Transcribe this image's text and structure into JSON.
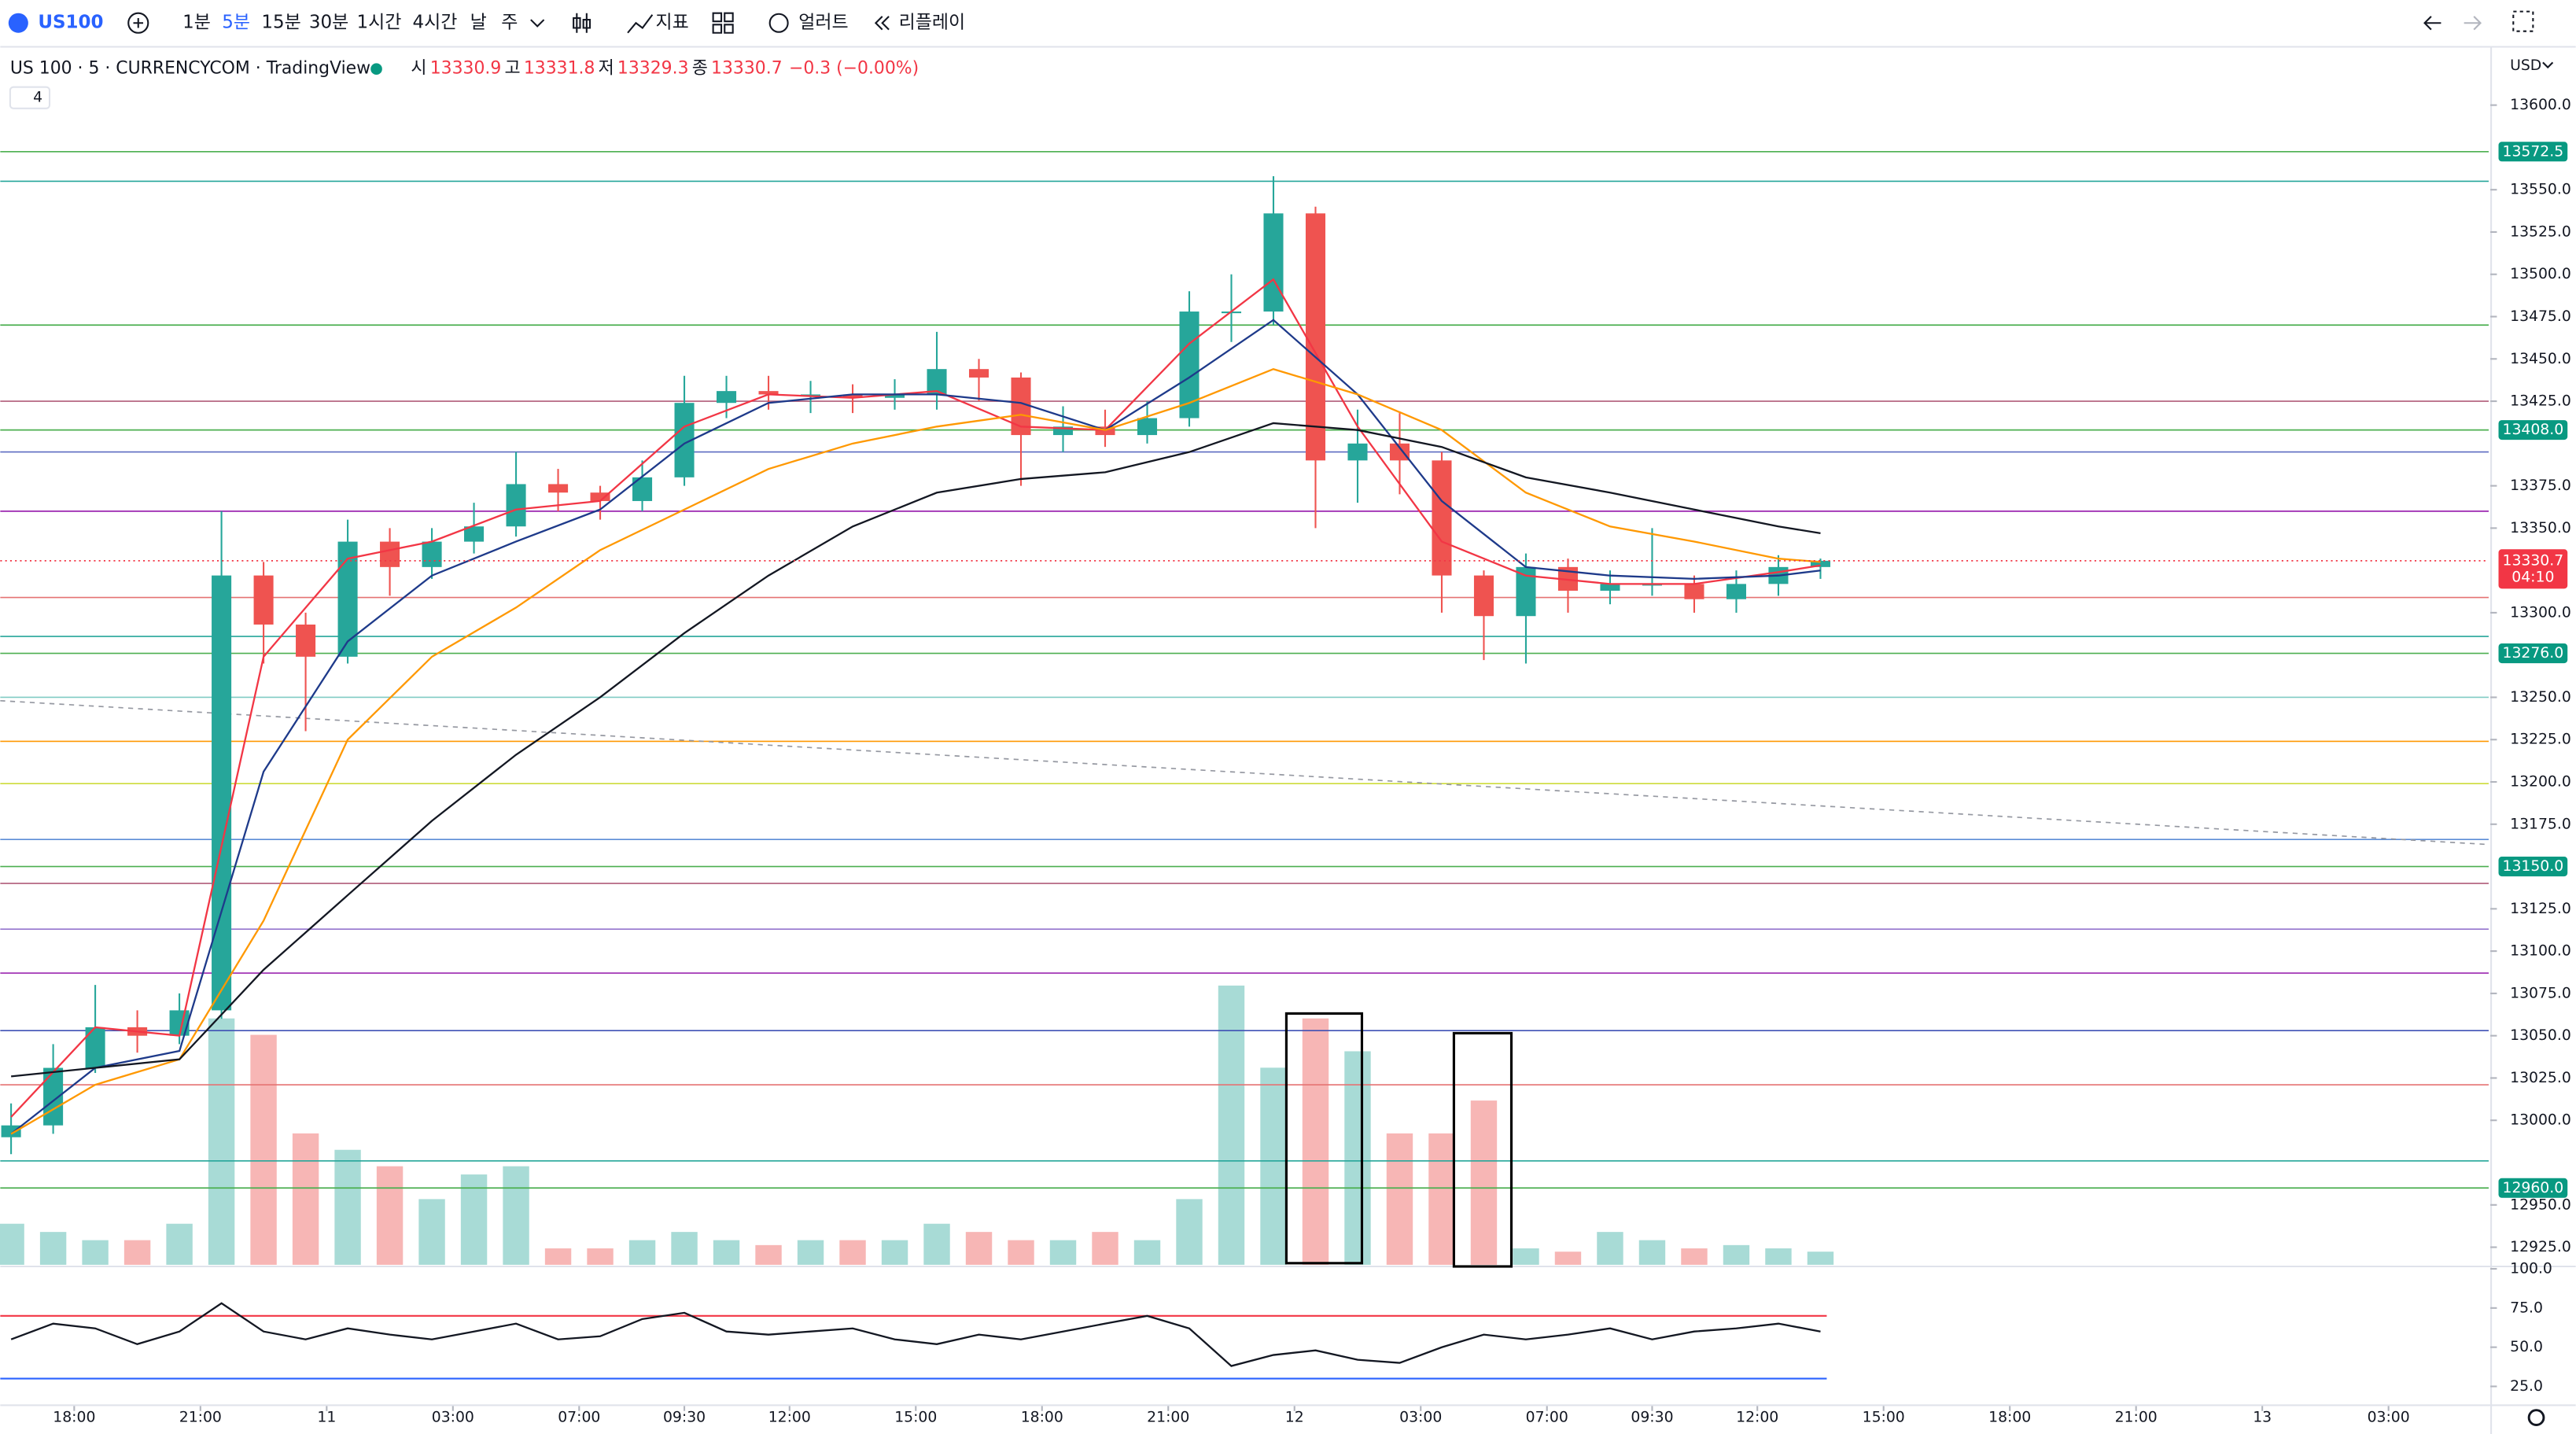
{
  "toolbar": {
    "symbol": "US100",
    "intervals": [
      "1분",
      "5분",
      "15분",
      "30분",
      "1시간",
      "4시간",
      "날",
      "주"
    ],
    "indicators": "지표",
    "alerts": "얼러트",
    "replay": "리플레이"
  },
  "legend": {
    "title": "US 100 · 5 · CURRENCYCOM · TradingView",
    "open_label": "시",
    "open": "13330.9",
    "high_label": "고",
    "high": "13331.8",
    "low_label": "저",
    "low": "13329.3",
    "close_label": "종",
    "close": "13330.7",
    "change": "−0.3 (−0.00%)",
    "indicator_count": "4"
  },
  "chart_data": [
    {
      "type": "candlestick",
      "currency": "USD",
      "x": [
        -1.5,
        -0.5,
        0.5,
        1.5,
        2.5,
        3.5,
        4.5,
        5.5,
        6.5,
        7.5,
        8.5,
        9.5,
        10.5,
        11.5,
        12.5,
        13.5,
        14.5,
        15.5,
        16.5,
        17.5,
        18.5,
        19.5,
        20.5,
        21.5,
        22.5,
        23.5,
        24.5,
        25.5,
        26.5,
        27.5,
        28.5,
        29.5,
        30.5,
        31.5,
        32.5,
        33.5,
        34.5,
        35.5,
        36.5,
        37.5,
        38.5,
        39.5,
        40.5,
        41.5
      ],
      "open": [
        12990,
        12997,
        13031,
        13055,
        13050,
        13065,
        13322,
        13293,
        13274,
        13342,
        13327,
        13342,
        13351,
        13376,
        13371,
        13366,
        13380,
        13424,
        13431,
        13429,
        13429,
        13427,
        13429,
        13444,
        13439,
        13405,
        13410,
        13405,
        13415,
        13478,
        13478,
        13536,
        13390,
        13400,
        13390,
        13322,
        13298,
        13327,
        13313,
        13317,
        13317,
        13308,
        13317,
        13327
      ],
      "high": [
        13010,
        13045,
        13080,
        13065,
        13075,
        13360,
        13330,
        13300,
        13355,
        13350,
        13350,
        13365,
        13395,
        13385,
        13375,
        13390,
        13440,
        13440,
        13440,
        13437,
        13435,
        13438,
        13466,
        13450,
        13442,
        13422,
        13420,
        13425,
        13490,
        13500,
        13558,
        13540,
        13420,
        13418,
        13395,
        13325,
        13335,
        13332,
        13325,
        13350,
        13322,
        13325,
        13334,
        13332
      ],
      "low": [
        12980,
        12992,
        13028,
        13040,
        13045,
        13060,
        13270,
        13230,
        13270,
        13310,
        13320,
        13335,
        13345,
        13360,
        13355,
        13360,
        13375,
        13415,
        13420,
        13418,
        13418,
        13420,
        13420,
        13425,
        13375,
        13395,
        13398,
        13400,
        13410,
        13460,
        13470,
        13350,
        13365,
        13370,
        13300,
        13272,
        13270,
        13300,
        13305,
        13310,
        13300,
        13300,
        13310,
        13320
      ],
      "close": [
        12997,
        13031,
        13055,
        13050,
        13065,
        13322,
        13293,
        13274,
        13342,
        13327,
        13342,
        13351,
        13376,
        13371,
        13366,
        13380,
        13424,
        13431,
        13429,
        13429,
        13427,
        13429,
        13444,
        13439,
        13405,
        13410,
        13405,
        13415,
        13478,
        13478,
        13536,
        13390,
        13400,
        13390,
        13322,
        13298,
        13327,
        13313,
        13317,
        13317,
        13308,
        13317,
        13327,
        13330.7
      ],
      "up_color": "#26a69a",
      "down_color": "#ef5350",
      "volume": {
        "values": [
          25,
          20,
          15,
          15,
          25,
          150,
          140,
          80,
          70,
          60,
          40,
          55,
          60,
          10,
          10,
          15,
          20,
          15,
          12,
          15,
          15,
          15,
          25,
          20,
          15,
          15,
          20,
          15,
          40,
          170,
          120,
          150,
          130,
          80,
          80,
          100,
          10,
          8,
          20,
          15,
          10,
          12,
          10,
          8
        ],
        "ylim": [
          0,
          740
        ],
        "up_color": "#a8dbd6",
        "down_color": "#f7b6b5"
      },
      "ma_x": [
        -1.5,
        0.5,
        2.5,
        4.5,
        6.5,
        8.5,
        10.5,
        12.5,
        14.5,
        16.5,
        18.5,
        20.5,
        22.5,
        24.5,
        26.5,
        28.5,
        30.5,
        32.5,
        34.5,
        36.5,
        38.5,
        40.5,
        41.5
      ],
      "lines": [
        {
          "color": "#f23645",
          "values": [
            13002,
            13055,
            13050,
            13274,
            13332,
            13342,
            13361,
            13366,
            13410,
            13429,
            13427,
            13431,
            13410,
            13408,
            13459,
            13497,
            13410,
            13342,
            13322,
            13317,
            13317,
            13324,
            13328
          ]
        },
        {
          "color": "#1e3a8a",
          "values": [
            12992,
            13031,
            13041,
            13206,
            13283,
            13322,
            13342,
            13361,
            13400,
            13424,
            13429,
            13429,
            13424,
            13408,
            13439,
            13473,
            13429,
            13366,
            13327,
            13322,
            13320,
            13322,
            13325
          ]
        },
        {
          "color": "#ff9800",
          "values": [
            12992,
            13021,
            13036,
            13118,
            13225,
            13274,
            13303,
            13337,
            13361,
            13385,
            13400,
            13410,
            13417,
            13408,
            13424,
            13444,
            13429,
            13408,
            13371,
            13351,
            13342,
            13332,
            13330
          ]
        },
        {
          "color": "#131722",
          "values": [
            13026,
            13031,
            13036,
            13089,
            13133,
            13177,
            13216,
            13250,
            13288,
            13322,
            13351,
            13371,
            13379,
            13383,
            13395,
            13412,
            13408,
            13398,
            13380,
            13371,
            13361,
            13351,
            13347
          ]
        }
      ],
      "levels": [
        {
          "value": 13572.5,
          "color": "#4caf50"
        },
        {
          "value": 13555,
          "color": "#26a69a"
        },
        {
          "value": 13470,
          "color": "#4caf50"
        },
        {
          "value": 13425,
          "color": "#b05d7a"
        },
        {
          "value": 13408,
          "color": "#4caf50"
        },
        {
          "value": 13395,
          "color": "#5c6bc0"
        },
        {
          "value": 13360,
          "color": "#9c27b0"
        },
        {
          "value": 13309,
          "color": "#e57373"
        },
        {
          "value": 13286,
          "color": "#26a69a"
        },
        {
          "value": 13276,
          "color": "#4caf50"
        },
        {
          "value": 13250,
          "color": "#80cbc4"
        },
        {
          "value": 13224,
          "color": "#ff9800"
        },
        {
          "value": 13199,
          "color": "#cddc39"
        },
        {
          "value": 13166,
          "color": "#5c8dd6"
        },
        {
          "value": 13150,
          "color": "#4caf50"
        },
        {
          "value": 13140,
          "color": "#b05d7a"
        },
        {
          "value": 13113,
          "color": "#9575cd"
        },
        {
          "value": 13087,
          "color": "#9c27b0"
        },
        {
          "value": 13053,
          "color": "#3f51b5"
        },
        {
          "value": 13021,
          "color": "#e57373"
        },
        {
          "value": 12976,
          "color": "#26a69a"
        },
        {
          "value": 12960,
          "color": "#4caf50"
        }
      ],
      "price_labels": [
        {
          "value": 13572.5,
          "label": "13572.5"
        },
        {
          "value": 13408,
          "label": "13408.0"
        },
        {
          "value": 13276,
          "label": "13276.0"
        },
        {
          "value": 13150,
          "label": "13150.0"
        },
        {
          "value": 12960,
          "label": "12960.0"
        }
      ],
      "label_color": "#089981",
      "current": {
        "value": 13330.7,
        "label": "13330.7",
        "countdown": "04:10",
        "color": "#f23645"
      },
      "trendline": {
        "x": [
          -1.757,
          57.38
        ],
        "values": [
          13248,
          13163
        ],
        "color": "#9598a1"
      },
      "xlim": [
        -1.757,
        57.38
      ],
      "ylim": [
        12914.6,
        13633
      ],
      "xticks": [
        {
          "value": 0,
          "label": "18:00"
        },
        {
          "value": 3,
          "label": "21:00"
        },
        {
          "value": 6,
          "label": "11"
        },
        {
          "value": 9,
          "label": "03:00"
        },
        {
          "value": 12,
          "label": "07:00"
        },
        {
          "value": 14.5,
          "label": "09:30"
        },
        {
          "value": 17,
          "label": "12:00"
        },
        {
          "value": 20,
          "label": "15:00"
        },
        {
          "value": 23,
          "label": "18:00"
        },
        {
          "value": 26,
          "label": "21:00"
        },
        {
          "value": 29,
          "label": "12"
        },
        {
          "value": 32,
          "label": "03:00"
        },
        {
          "value": 35,
          "label": "07:00"
        },
        {
          "value": 37.5,
          "label": "09:30"
        },
        {
          "value": 40,
          "label": "12:00"
        },
        {
          "value": 43,
          "label": "15:00"
        },
        {
          "value": 46,
          "label": "18:00"
        },
        {
          "value": 49,
          "label": "21:00"
        },
        {
          "value": 52,
          "label": "13"
        },
        {
          "value": 55,
          "label": "03:00"
        }
      ],
      "yticks": [
        {
          "value": 13600,
          "label": "13600.0"
        },
        {
          "value": 13550,
          "label": "13550.0"
        },
        {
          "value": 13525,
          "label": "13525.0"
        },
        {
          "value": 13500,
          "label": "13500.0"
        },
        {
          "value": 13475,
          "label": "13475.0"
        },
        {
          "value": 13450,
          "label": "13450.0"
        },
        {
          "value": 13425,
          "label": "13425.0"
        },
        {
          "value": 13375,
          "label": "13375.0"
        },
        {
          "value": 13350,
          "label": "13350.0"
        },
        {
          "value": 13300,
          "label": "13300.0"
        },
        {
          "value": 13250,
          "label": "13250.0"
        },
        {
          "value": 13225,
          "label": "13225.0"
        },
        {
          "value": 13200,
          "label": "13200.0"
        },
        {
          "value": 13175,
          "label": "13175.0"
        },
        {
          "value": 13125,
          "label": "13125.0"
        },
        {
          "value": 13100,
          "label": "13100.0"
        },
        {
          "value": 13075,
          "label": "13075.0"
        },
        {
          "value": 13050,
          "label": "13050.0"
        },
        {
          "value": 13025,
          "label": "13025.0"
        },
        {
          "value": 13000,
          "label": "13000.0"
        },
        {
          "value": 12950,
          "label": "12950.0"
        },
        {
          "value": 12925,
          "label": "12925.0"
        }
      ]
    },
    {
      "type": "line",
      "color": "#131722",
      "x": [
        -1.5,
        -0.5,
        0.5,
        1.5,
        2.5,
        3.5,
        4.5,
        5.5,
        6.5,
        7.5,
        8.5,
        9.5,
        10.5,
        11.5,
        12.5,
        13.5,
        14.5,
        15.5,
        16.5,
        17.5,
        18.5,
        19.5,
        20.5,
        21.5,
        22.5,
        23.5,
        24.5,
        25.5,
        26.5,
        27.5,
        28.5,
        29.5,
        30.5,
        31.5,
        32.5,
        33.5,
        34.5,
        35.5,
        36.5,
        37.5,
        38.5,
        39.5,
        40.5,
        41.5
      ],
      "values": [
        55,
        65,
        62,
        52,
        60,
        78,
        60,
        55,
        62,
        58,
        55,
        60,
        65,
        55,
        57,
        68,
        72,
        60,
        58,
        60,
        62,
        55,
        52,
        58,
        55,
        60,
        65,
        70,
        62,
        38,
        45,
        48,
        42,
        40,
        50,
        58,
        55,
        58,
        62,
        55,
        60,
        62,
        65,
        60
      ],
      "bands": [
        {
          "value": 70,
          "color": "#f23645"
        },
        {
          "value": 30,
          "color": "#2962ff"
        }
      ],
      "xlim": [
        -1.757,
        57.38
      ],
      "ylim": [
        13.5,
        101.5
      ],
      "yticks": [
        {
          "value": 25,
          "label": "25.0"
        },
        {
          "value": 50,
          "label": "50.0"
        },
        {
          "value": 75,
          "label": "75.0"
        },
        {
          "value": 100,
          "label": "100.0"
        }
      ]
    }
  ]
}
